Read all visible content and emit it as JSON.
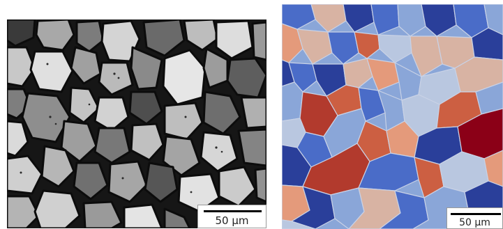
{
  "left_figure": {
    "kind": "optical micrograph of polycrystalline grains (grayscale)",
    "scale_bar": {
      "label": "50 μm"
    },
    "colors": {
      "boundary": "#151515",
      "grain_light": "#d9d9d9",
      "grain_mid": "#9a9a9a",
      "grain_dark": "#4a4a4a"
    }
  },
  "right_figure": {
    "kind": "simulated grain map (orientation colored)",
    "scale_bar": {
      "label": "50 μm"
    },
    "colors": {
      "navy": "#2a3f9a",
      "blue": "#4a6cc8",
      "light_blue": "#8aa6d8",
      "pale_blue": "#b9c7e0",
      "tan": "#d8b3a3",
      "salmon": "#e49a7b",
      "orange_red": "#cc5f42",
      "red": "#b23a2d",
      "dark_red": "#8b0017"
    }
  }
}
